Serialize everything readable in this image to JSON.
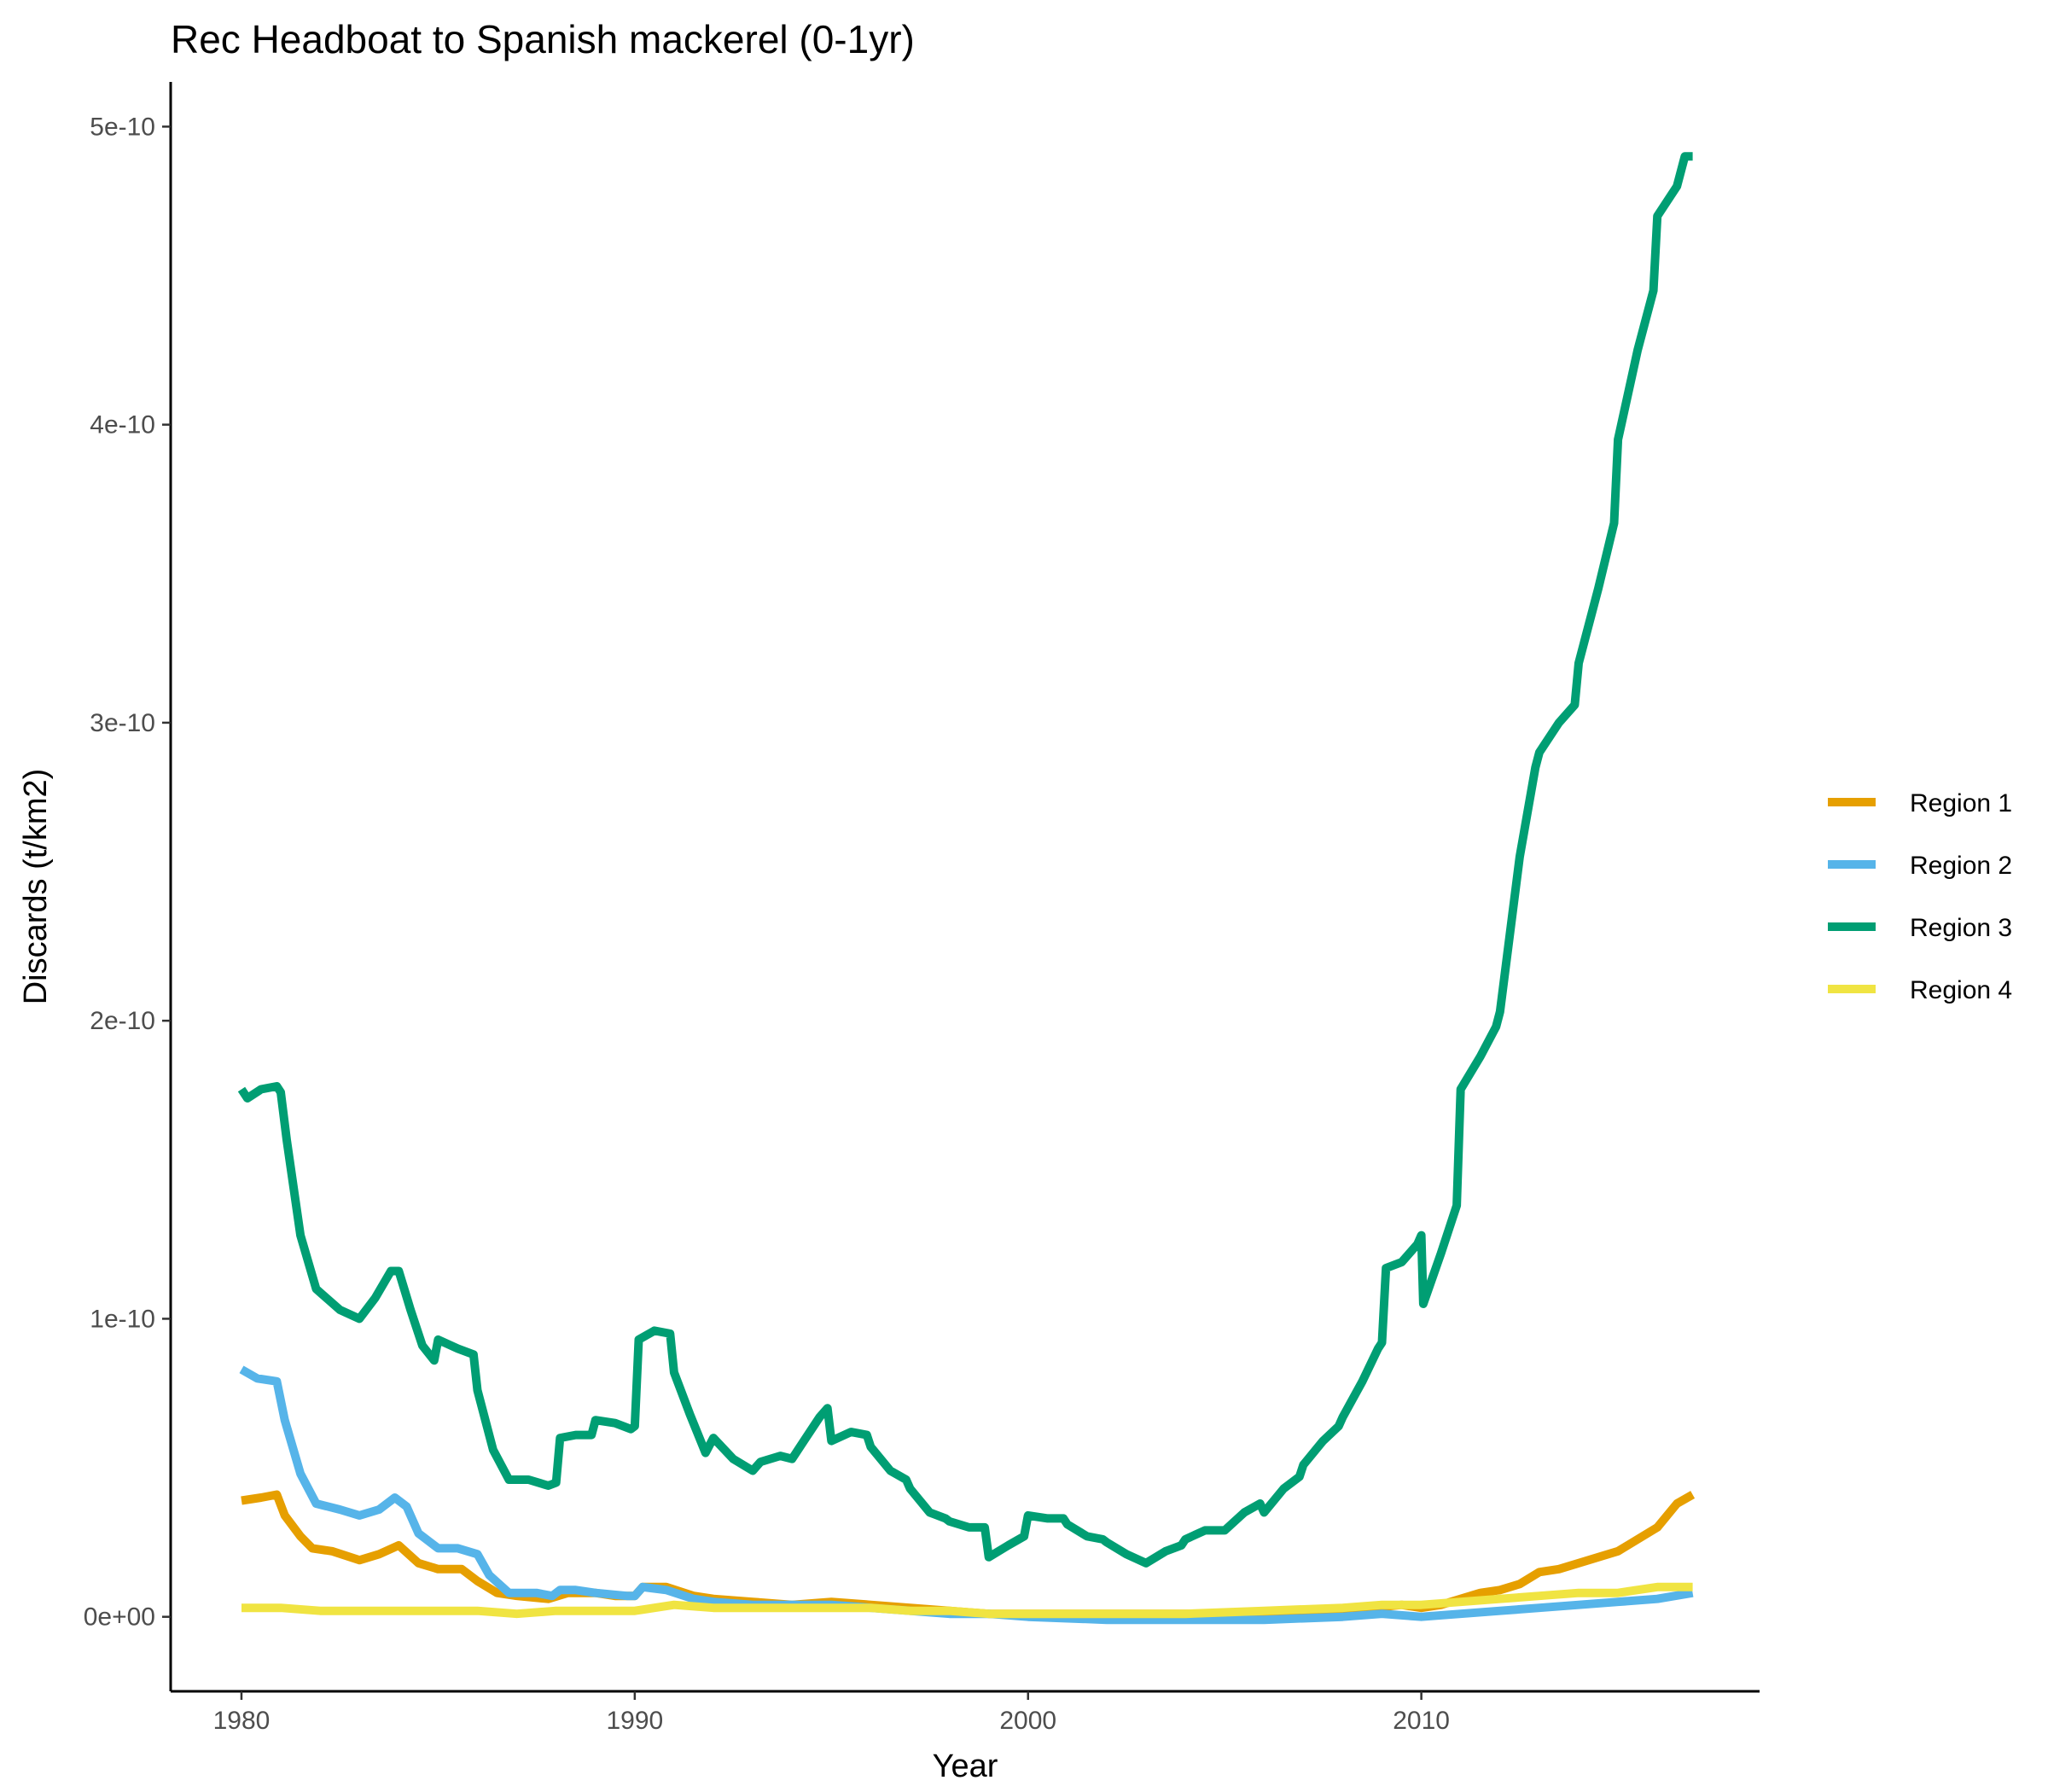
{
  "chart_data": {
    "type": "line",
    "title": "Rec Headboat to Spanish mackerel (0-1yr)",
    "xlabel": "Year",
    "ylabel": "Discards (t/km2)",
    "xlim": [
      1978.2,
      2018.6
    ],
    "ylim": [
      -2.5e-11,
      5.15e-10
    ],
    "x_ticks": [
      1980,
      1990,
      2000,
      2010
    ],
    "x_tick_labels": [
      "1980",
      "1990",
      "2000",
      "2010"
    ],
    "y_ticks": [
      0,
      1e-10,
      2e-10,
      3e-10,
      4e-10,
      5e-10
    ],
    "y_tick_labels": [
      "0e+00",
      "1e-10",
      "2e-10",
      "3e-10",
      "4e-10",
      "5e-10"
    ],
    "grid": false,
    "legend_position": "right",
    "series": [
      {
        "name": "Region 1",
        "label": "Region 1",
        "color": "#E69F00",
        "points": [
          [
            1980.0,
            3.9e-11
          ],
          [
            1980.5,
            4e-11
          ],
          [
            1980.9,
            4.1e-11
          ],
          [
            1981.1,
            3.4e-11
          ],
          [
            1981.5,
            2.7e-11
          ],
          [
            1981.8,
            2.3e-11
          ],
          [
            1982.3,
            2.2e-11
          ],
          [
            1983.0,
            1.9e-11
          ],
          [
            1983.5,
            2.1e-11
          ],
          [
            1984.0,
            2.4e-11
          ],
          [
            1984.5,
            1.8e-11
          ],
          [
            1985.0,
            1.6e-11
          ],
          [
            1985.6,
            1.6e-11
          ],
          [
            1986.0,
            1.2e-11
          ],
          [
            1986.5,
            8e-12
          ],
          [
            1987.0,
            7e-12
          ],
          [
            1987.8,
            6e-12
          ],
          [
            1988.3,
            8e-12
          ],
          [
            1989.0,
            8e-12
          ],
          [
            1989.5,
            7e-12
          ],
          [
            1990.0,
            7e-12
          ],
          [
            1990.2,
            1e-11
          ],
          [
            1990.8,
            1e-11
          ],
          [
            1991.5,
            7e-12
          ],
          [
            1992.0,
            6e-12
          ],
          [
            1993.0,
            5e-12
          ],
          [
            1994.0,
            4e-12
          ],
          [
            1995.0,
            5e-12
          ],
          [
            1996.0,
            4e-12
          ],
          [
            1997.0,
            3e-12
          ],
          [
            1998.0,
            2e-12
          ],
          [
            1999.0,
            1e-12
          ],
          [
            2000.0,
            1e-12
          ],
          [
            2002.0,
            1e-12
          ],
          [
            2004.0,
            1e-12
          ],
          [
            2006.0,
            1e-12
          ],
          [
            2008.0,
            2e-12
          ],
          [
            2009.5,
            4e-12
          ],
          [
            2010.0,
            3e-12
          ],
          [
            2010.5,
            4e-12
          ],
          [
            2011.0,
            6e-12
          ],
          [
            2011.5,
            8e-12
          ],
          [
            2012.0,
            9e-12
          ],
          [
            2012.5,
            1.1e-11
          ],
          [
            2013.0,
            1.5e-11
          ],
          [
            2013.5,
            1.6e-11
          ],
          [
            2014.0,
            1.8e-11
          ],
          [
            2014.5,
            2e-11
          ],
          [
            2015.0,
            2.2e-11
          ],
          [
            2015.5,
            2.6e-11
          ],
          [
            2016.0,
            3e-11
          ],
          [
            2016.5,
            3.8e-11
          ],
          [
            2016.9,
            4.1e-11
          ]
        ]
      },
      {
        "name": "Region 2",
        "label": "Region 2",
        "color": "#56B4E9",
        "points": [
          [
            1980.0,
            8.3e-11
          ],
          [
            1980.4,
            8e-11
          ],
          [
            1980.9,
            7.9e-11
          ],
          [
            1981.1,
            6.6e-11
          ],
          [
            1981.5,
            4.8e-11
          ],
          [
            1981.9,
            3.8e-11
          ],
          [
            1982.5,
            3.6e-11
          ],
          [
            1983.0,
            3.4e-11
          ],
          [
            1983.5,
            3.6e-11
          ],
          [
            1983.9,
            4e-11
          ],
          [
            1984.2,
            3.7e-11
          ],
          [
            1984.5,
            2.8e-11
          ],
          [
            1985.0,
            2.3e-11
          ],
          [
            1985.5,
            2.3e-11
          ],
          [
            1986.0,
            2.1e-11
          ],
          [
            1986.3,
            1.4e-11
          ],
          [
            1986.8,
            8e-12
          ],
          [
            1987.5,
            8e-12
          ],
          [
            1987.9,
            7e-12
          ],
          [
            1988.1,
            9e-12
          ],
          [
            1988.5,
            9e-12
          ],
          [
            1989.0,
            8e-12
          ],
          [
            1989.8,
            7e-12
          ],
          [
            1990.0,
            7e-12
          ],
          [
            1990.2,
            1e-11
          ],
          [
            1990.8,
            9e-12
          ],
          [
            1991.5,
            6e-12
          ],
          [
            1992.0,
            5e-12
          ],
          [
            1993.0,
            4e-12
          ],
          [
            1994.0,
            4e-12
          ],
          [
            1995.0,
            4e-12
          ],
          [
            1996.0,
            3e-12
          ],
          [
            1997.0,
            2e-12
          ],
          [
            1998.0,
            1e-12
          ],
          [
            1999.0,
            1e-12
          ],
          [
            2000.0,
            0
          ],
          [
            2002.0,
            -1e-12
          ],
          [
            2004.0,
            -1e-12
          ],
          [
            2006.0,
            -1e-12
          ],
          [
            2008.0,
            0
          ],
          [
            2009.0,
            1e-12
          ],
          [
            2010.0,
            0
          ],
          [
            2011.0,
            1e-12
          ],
          [
            2012.0,
            2e-12
          ],
          [
            2013.0,
            3e-12
          ],
          [
            2014.0,
            4e-12
          ],
          [
            2015.0,
            5e-12
          ],
          [
            2016.0,
            6e-12
          ],
          [
            2016.9,
            8e-12
          ]
        ]
      },
      {
        "name": "Region 3",
        "label": "Region 3",
        "color": "#009E73",
        "points": [
          [
            1980.0,
            1.77e-10
          ],
          [
            1980.15,
            1.74e-10
          ],
          [
            1980.5,
            1.77e-10
          ],
          [
            1980.9,
            1.78e-10
          ],
          [
            1981.0,
            1.76e-10
          ],
          [
            1981.15,
            1.6e-10
          ],
          [
            1981.5,
            1.28e-10
          ],
          [
            1981.9,
            1.1e-10
          ],
          [
            1982.5,
            1.03e-10
          ],
          [
            1983.0,
            1e-10
          ],
          [
            1983.4,
            1.07e-10
          ],
          [
            1983.8,
            1.16e-10
          ],
          [
            1984.0,
            1.16e-10
          ],
          [
            1984.3,
            1.03e-10
          ],
          [
            1984.6,
            9.1e-11
          ],
          [
            1984.9,
            8.6e-11
          ],
          [
            1985.0,
            9.3e-11
          ],
          [
            1985.5,
            9e-11
          ],
          [
            1985.9,
            8.8e-11
          ],
          [
            1986.0,
            7.6e-11
          ],
          [
            1986.4,
            5.6e-11
          ],
          [
            1986.8,
            4.6e-11
          ],
          [
            1987.3,
            4.6e-11
          ],
          [
            1987.8,
            4.4e-11
          ],
          [
            1988.0,
            4.5e-11
          ],
          [
            1988.1,
            6e-11
          ],
          [
            1988.5,
            6.1e-11
          ],
          [
            1988.9,
            6.1e-11
          ],
          [
            1989.0,
            6.6e-11
          ],
          [
            1989.5,
            6.5e-11
          ],
          [
            1989.9,
            6.3e-11
          ],
          [
            1990.0,
            6.4e-11
          ],
          [
            1990.1,
            9.3e-11
          ],
          [
            1990.5,
            9.6e-11
          ],
          [
            1990.9,
            9.5e-11
          ],
          [
            1991.0,
            8.2e-11
          ],
          [
            1991.4,
            6.8e-11
          ],
          [
            1991.8,
            5.5e-11
          ],
          [
            1992.0,
            6e-11
          ],
          [
            1992.5,
            5.3e-11
          ],
          [
            1993.0,
            4.9e-11
          ],
          [
            1993.2,
            5.2e-11
          ],
          [
            1993.7,
            5.4e-11
          ],
          [
            1994.0,
            5.3e-11
          ],
          [
            1994.3,
            5.9e-11
          ],
          [
            1994.7,
            6.7e-11
          ],
          [
            1994.9,
            7e-11
          ],
          [
            1995.0,
            5.9e-11
          ],
          [
            1995.5,
            6.2e-11
          ],
          [
            1995.9,
            6.1e-11
          ],
          [
            1996.0,
            5.7e-11
          ],
          [
            1996.5,
            4.9e-11
          ],
          [
            1996.9,
            4.6e-11
          ],
          [
            1997.0,
            4.3e-11
          ],
          [
            1997.5,
            3.5e-11
          ],
          [
            1997.9,
            3.3e-11
          ],
          [
            1998.0,
            3.2e-11
          ],
          [
            1998.5,
            3e-11
          ],
          [
            1998.9,
            3e-11
          ],
          [
            1999.0,
            2e-11
          ],
          [
            1999.5,
            2.4e-11
          ],
          [
            1999.9,
            2.7e-11
          ],
          [
            2000.0,
            3.4e-11
          ],
          [
            2000.5,
            3.3e-11
          ],
          [
            2000.9,
            3.3e-11
          ],
          [
            2001.0,
            3.1e-11
          ],
          [
            2001.5,
            2.7e-11
          ],
          [
            2001.9,
            2.6e-11
          ],
          [
            2002.0,
            2.5e-11
          ],
          [
            2002.5,
            2.1e-11
          ],
          [
            2003.0,
            1.8e-11
          ],
          [
            2003.5,
            2.2e-11
          ],
          [
            2003.9,
            2.4e-11
          ],
          [
            2004.0,
            2.6e-11
          ],
          [
            2004.5,
            2.9e-11
          ],
          [
            2004.9,
            2.9e-11
          ],
          [
            2005.0,
            2.9e-11
          ],
          [
            2005.5,
            3.5e-11
          ],
          [
            2005.9,
            3.8e-11
          ],
          [
            2006.0,
            3.5e-11
          ],
          [
            2006.5,
            4.3e-11
          ],
          [
            2006.9,
            4.7e-11
          ],
          [
            2007.0,
            5.1e-11
          ],
          [
            2007.5,
            5.9e-11
          ],
          [
            2007.9,
            6.4e-11
          ],
          [
            2008.0,
            6.7e-11
          ],
          [
            2008.5,
            7.9e-11
          ],
          [
            2008.9,
            9e-11
          ],
          [
            2009.0,
            9.2e-11
          ],
          [
            2009.1,
            1.17e-10
          ],
          [
            2009.5,
            1.19e-10
          ],
          [
            2009.9,
            1.25e-10
          ],
          [
            2010.0,
            1.28e-10
          ],
          [
            2010.05,
            1.05e-10
          ],
          [
            2010.5,
            1.22e-10
          ],
          [
            2010.9,
            1.38e-10
          ],
          [
            2011.0,
            1.77e-10
          ],
          [
            2011.5,
            1.88e-10
          ],
          [
            2011.9,
            1.98e-10
          ],
          [
            2012.0,
            2.03e-10
          ],
          [
            2012.5,
            2.55e-10
          ],
          [
            2012.9,
            2.85e-10
          ],
          [
            2013.0,
            2.9e-10
          ],
          [
            2013.5,
            3e-10
          ],
          [
            2013.9,
            3.06e-10
          ],
          [
            2014.0,
            3.2e-10
          ],
          [
            2014.5,
            3.45e-10
          ],
          [
            2014.9,
            3.67e-10
          ],
          [
            2015.0,
            3.95e-10
          ],
          [
            2015.5,
            4.25e-10
          ],
          [
            2015.9,
            4.45e-10
          ],
          [
            2016.0,
            4.7e-10
          ],
          [
            2016.5,
            4.8e-10
          ],
          [
            2016.7,
            4.9e-10
          ],
          [
            2016.9,
            4.9e-10
          ]
        ]
      },
      {
        "name": "Region 4",
        "label": "Region 4",
        "color": "#F0E442",
        "points": [
          [
            1980.0,
            3e-12
          ],
          [
            1981.0,
            3e-12
          ],
          [
            1982.0,
            2e-12
          ],
          [
            1983.0,
            2e-12
          ],
          [
            1984.0,
            2e-12
          ],
          [
            1985.0,
            2e-12
          ],
          [
            1986.0,
            2e-12
          ],
          [
            1987.0,
            1e-12
          ],
          [
            1988.0,
            2e-12
          ],
          [
            1989.0,
            2e-12
          ],
          [
            1990.0,
            2e-12
          ],
          [
            1991.0,
            4e-12
          ],
          [
            1992.0,
            3e-12
          ],
          [
            1993.0,
            3e-12
          ],
          [
            1994.0,
            3e-12
          ],
          [
            1995.0,
            3e-12
          ],
          [
            1996.0,
            3e-12
          ],
          [
            1997.0,
            2e-12
          ],
          [
            1998.0,
            2e-12
          ],
          [
            1999.0,
            1e-12
          ],
          [
            2000.0,
            1e-12
          ],
          [
            2002.0,
            1e-12
          ],
          [
            2004.0,
            1e-12
          ],
          [
            2006.0,
            2e-12
          ],
          [
            2008.0,
            3e-12
          ],
          [
            2009.0,
            4e-12
          ],
          [
            2010.0,
            4e-12
          ],
          [
            2011.0,
            5e-12
          ],
          [
            2012.0,
            6e-12
          ],
          [
            2013.0,
            7e-12
          ],
          [
            2014.0,
            8e-12
          ],
          [
            2015.0,
            8e-12
          ],
          [
            2016.0,
            1e-11
          ],
          [
            2016.9,
            1e-11
          ]
        ]
      }
    ]
  }
}
